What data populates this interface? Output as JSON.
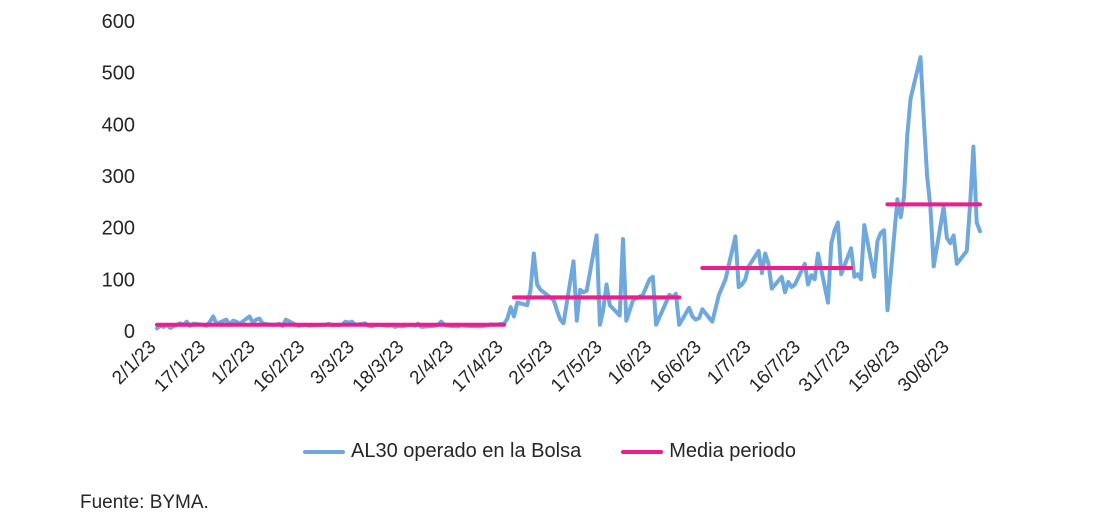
{
  "chart_data": {
    "type": "line",
    "ylim": [
      0,
      600
    ],
    "yticks": [
      0,
      100,
      200,
      300,
      400,
      500,
      600
    ],
    "xlim": [
      "2/1/23",
      "8/9/23"
    ],
    "x_tick_labels": [
      "2/1/23",
      "17/1/23",
      "1/2/23",
      "16/2/23",
      "3/3/23",
      "18/3/23",
      "2/4/23",
      "17/4/23",
      "2/5/23",
      "17/5/23",
      "1/6/23",
      "16/6/23",
      "1/7/23",
      "16/7/23",
      "31/7/23",
      "15/8/23",
      "30/8/23"
    ],
    "grid": false,
    "legend_placement": "bottom",
    "series": [
      {
        "name": "AL30 operado en la Bolsa",
        "color": "#6fa8dc",
        "points": [
          [
            "2/1/23",
            5
          ],
          [
            "3/1/23",
            10
          ],
          [
            "4/1/23",
            8
          ],
          [
            "5/1/23",
            12
          ],
          [
            "6/1/23",
            6
          ],
          [
            "9/1/23",
            15
          ],
          [
            "10/1/23",
            12
          ],
          [
            "11/1/23",
            18
          ],
          [
            "12/1/23",
            10
          ],
          [
            "13/1/23",
            14
          ],
          [
            "16/1/23",
            12
          ],
          [
            "17/1/23",
            10
          ],
          [
            "18/1/23",
            18
          ],
          [
            "19/1/23",
            28
          ],
          [
            "20/1/23",
            14
          ],
          [
            "23/1/23",
            22
          ],
          [
            "24/1/23",
            12
          ],
          [
            "25/1/23",
            20
          ],
          [
            "26/1/23",
            18
          ],
          [
            "27/1/23",
            14
          ],
          [
            "30/1/23",
            28
          ],
          [
            "31/1/23",
            16
          ],
          [
            "1/2/23",
            22
          ],
          [
            "2/2/23",
            24
          ],
          [
            "3/2/23",
            14
          ],
          [
            "6/2/23",
            12
          ],
          [
            "7/2/23",
            12
          ],
          [
            "8/2/23",
            14
          ],
          [
            "9/2/23",
            10
          ],
          [
            "10/2/23",
            22
          ],
          [
            "13/2/23",
            12
          ],
          [
            "14/2/23",
            10
          ],
          [
            "15/2/23",
            11
          ],
          [
            "16/2/23",
            12
          ],
          [
            "17/2/23",
            10
          ],
          [
            "22/2/23",
            12
          ],
          [
            "23/2/23",
            14
          ],
          [
            "24/2/23",
            11
          ],
          [
            "27/2/23",
            12
          ],
          [
            "28/2/23",
            18
          ],
          [
            "1/3/23",
            16
          ],
          [
            "2/3/23",
            18
          ],
          [
            "3/3/23",
            12
          ],
          [
            "6/3/23",
            15
          ],
          [
            "7/3/23",
            10
          ],
          [
            "8/3/23",
            9
          ],
          [
            "9/3/23",
            11
          ],
          [
            "10/3/23",
            12
          ],
          [
            "13/3/23",
            10
          ],
          [
            "14/3/23",
            12
          ],
          [
            "15/3/23",
            8
          ],
          [
            "16/3/23",
            10
          ],
          [
            "17/3/23",
            9
          ],
          [
            "20/3/23",
            12
          ],
          [
            "21/3/23",
            10
          ],
          [
            "22/3/23",
            14
          ],
          [
            "23/3/23",
            8
          ],
          [
            "27/3/23",
            10
          ],
          [
            "28/3/23",
            12
          ],
          [
            "29/3/23",
            18
          ],
          [
            "30/3/23",
            12
          ],
          [
            "31/3/23",
            10
          ],
          [
            "3/4/23",
            9
          ],
          [
            "4/4/23",
            11
          ],
          [
            "5/4/23",
            10
          ],
          [
            "10/4/23",
            9
          ],
          [
            "11/4/23",
            10
          ],
          [
            "12/4/23",
            11
          ],
          [
            "13/4/23",
            13
          ],
          [
            "14/4/23",
            12
          ],
          [
            "17/4/23",
            14
          ],
          [
            "18/4/23",
            24
          ],
          [
            "19/4/23",
            46
          ],
          [
            "20/4/23",
            28
          ],
          [
            "21/4/23",
            55
          ],
          [
            "24/4/23",
            50
          ],
          [
            "25/4/23",
            80
          ],
          [
            "26/4/23",
            150
          ],
          [
            "27/4/23",
            90
          ],
          [
            "28/4/23",
            80
          ],
          [
            "2/5/23",
            60
          ],
          [
            "3/5/23",
            40
          ],
          [
            "4/5/23",
            22
          ],
          [
            "5/5/23",
            15
          ],
          [
            "8/5/23",
            135
          ],
          [
            "9/5/23",
            20
          ],
          [
            "10/5/23",
            80
          ],
          [
            "11/5/23",
            75
          ],
          [
            "12/5/23",
            78
          ],
          [
            "15/5/23",
            185
          ],
          [
            "16/5/23",
            12
          ],
          [
            "17/5/23",
            40
          ],
          [
            "18/5/23",
            90
          ],
          [
            "19/5/23",
            50
          ],
          [
            "22/5/23",
            30
          ],
          [
            "23/5/23",
            178
          ],
          [
            "24/5/23",
            20
          ],
          [
            "26/5/23",
            60
          ],
          [
            "29/5/23",
            70
          ],
          [
            "30/5/23",
            85
          ],
          [
            "31/5/23",
            100
          ],
          [
            "1/6/23",
            105
          ],
          [
            "2/6/23",
            12
          ],
          [
            "5/6/23",
            55
          ],
          [
            "6/6/23",
            70
          ],
          [
            "7/6/23",
            65
          ],
          [
            "8/6/23",
            72
          ],
          [
            "9/6/23",
            12
          ],
          [
            "12/6/23",
            45
          ],
          [
            "13/6/23",
            28
          ],
          [
            "14/6/23",
            22
          ],
          [
            "15/6/23",
            25
          ],
          [
            "16/6/23",
            42
          ],
          [
            "19/6/23",
            18
          ],
          [
            "21/6/23",
            70
          ],
          [
            "22/6/23",
            85
          ],
          [
            "23/6/23",
            100
          ],
          [
            "26/6/23",
            183
          ],
          [
            "27/6/23",
            85
          ],
          [
            "28/6/23",
            90
          ],
          [
            "29/6/23",
            100
          ],
          [
            "30/6/23",
            125
          ],
          [
            "3/7/23",
            155
          ],
          [
            "4/7/23",
            112
          ],
          [
            "5/7/23",
            150
          ],
          [
            "6/7/23",
            130
          ],
          [
            "7/7/23",
            82
          ],
          [
            "10/7/23",
            105
          ],
          [
            "11/7/23",
            75
          ],
          [
            "12/7/23",
            95
          ],
          [
            "13/7/23",
            85
          ],
          [
            "14/7/23",
            90
          ],
          [
            "17/7/23",
            130
          ],
          [
            "18/7/23",
            90
          ],
          [
            "19/7/23",
            108
          ],
          [
            "20/7/23",
            100
          ],
          [
            "21/7/23",
            150
          ],
          [
            "24/7/23",
            55
          ],
          [
            "25/7/23",
            170
          ],
          [
            "26/7/23",
            195
          ],
          [
            "27/7/23",
            210
          ],
          [
            "28/7/23",
            110
          ],
          [
            "31/7/23",
            160
          ],
          [
            "1/8/23",
            105
          ],
          [
            "2/8/23",
            110
          ],
          [
            "3/8/23",
            100
          ],
          [
            "4/8/23",
            205
          ],
          [
            "7/8/23",
            105
          ],
          [
            "8/8/23",
            175
          ],
          [
            "9/8/23",
            190
          ],
          [
            "10/8/23",
            195
          ],
          [
            "11/8/23",
            40
          ],
          [
            "14/8/23",
            255
          ],
          [
            "15/8/23",
            220
          ],
          [
            "16/8/23",
            260
          ],
          [
            "17/8/23",
            380
          ],
          [
            "18/8/23",
            450
          ],
          [
            "21/8/23",
            530
          ],
          [
            "22/8/23",
            410
          ],
          [
            "23/8/23",
            300
          ],
          [
            "24/8/23",
            240
          ],
          [
            "25/8/23",
            125
          ],
          [
            "28/8/23",
            240
          ],
          [
            "29/8/23",
            180
          ],
          [
            "30/8/23",
            170
          ],
          [
            "31/8/23",
            185
          ],
          [
            "1/9/23",
            130
          ],
          [
            "4/9/23",
            155
          ],
          [
            "5/9/23",
            245
          ],
          [
            "6/9/23",
            357
          ],
          [
            "7/9/23",
            210
          ],
          [
            "8/9/23",
            193
          ]
        ]
      },
      {
        "name": "Media periodo",
        "color": "#ee1c8c",
        "segments": [
          {
            "from": "2/1/23",
            "to": "17/4/23",
            "value": 12
          },
          {
            "from": "20/4/23",
            "to": "9/6/23",
            "value": 65
          },
          {
            "from": "16/6/23",
            "to": "31/7/23",
            "value": 122
          },
          {
            "from": "11/8/23",
            "to": "8/9/23",
            "value": 245
          }
        ]
      }
    ]
  },
  "legend": {
    "series1_label": "AL30 operado en la Bolsa",
    "series2_label": "Media periodo"
  },
  "source_label": "Fuente:  BYMA."
}
